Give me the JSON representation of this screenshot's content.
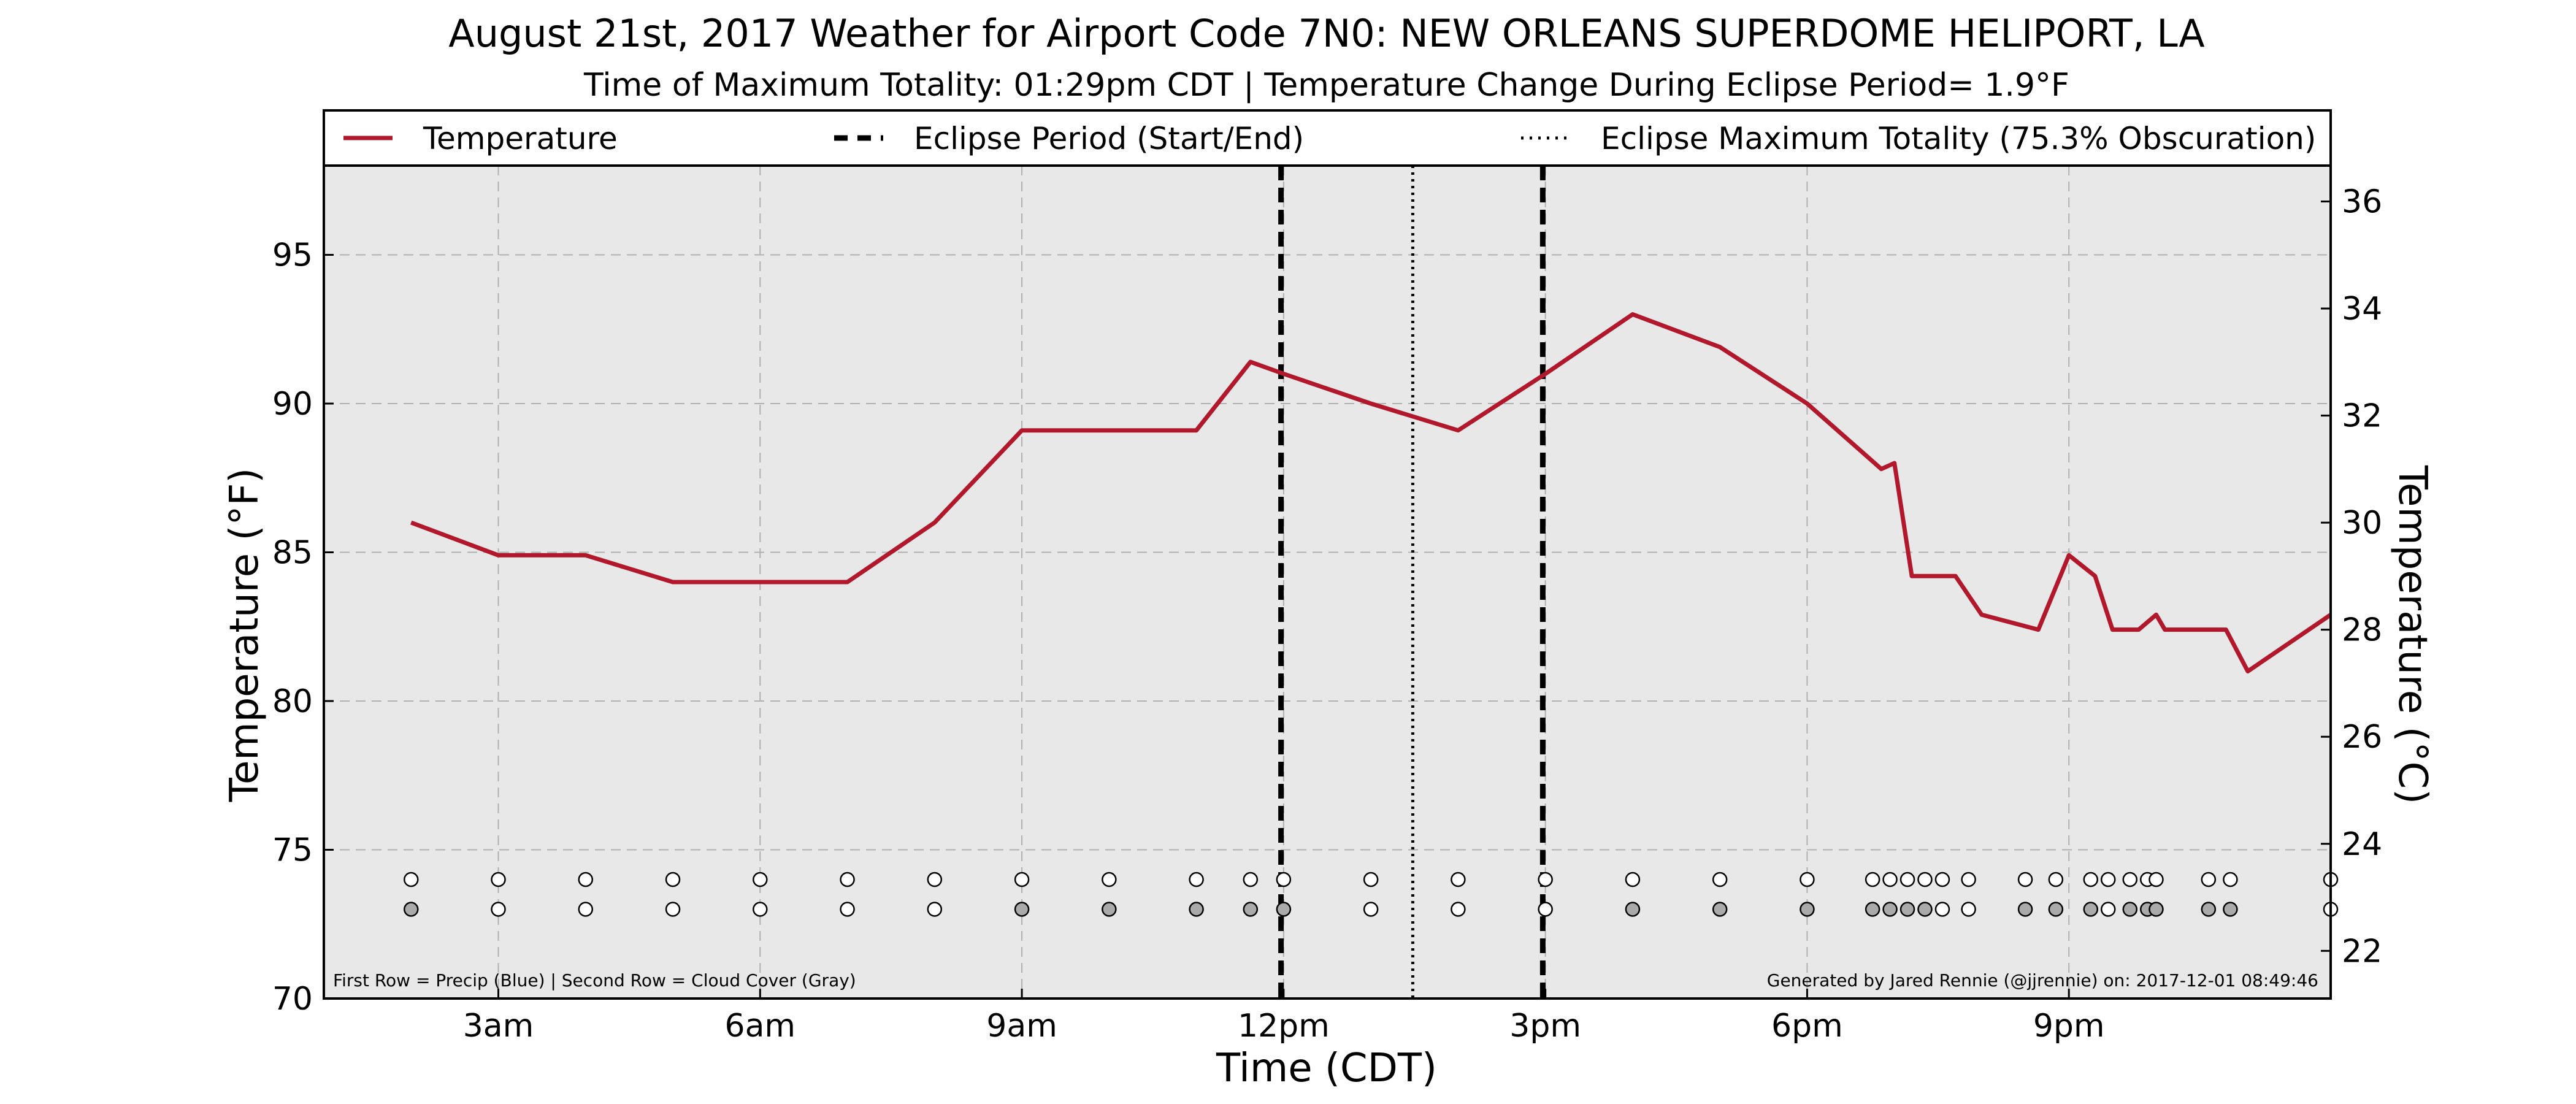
{
  "chart_data": {
    "type": "line",
    "title": "August 21st, 2017 Weather for Airport Code 7N0: NEW ORLEANS SUPERDOME HELIPORT, LA",
    "subtitle": "Time of Maximum Totality: 01:29pm CDT | Temperature Change During Eclipse Period= 1.9°F",
    "xlabel": "Time (CDT)",
    "ylabel_left": "Temperature (°F)",
    "ylabel_right": "Temperature (°C)",
    "x_unit": "hours CDT, Aug 21 2017",
    "xlim": [
      1.0,
      24.0
    ],
    "ylim": [
      70,
      98
    ],
    "ylim_right_celsius": [
      21.11,
      36.67
    ],
    "x_ticks": [
      {
        "value": 3,
        "label": "3am"
      },
      {
        "value": 6,
        "label": "6am"
      },
      {
        "value": 9,
        "label": "9am"
      },
      {
        "value": 12,
        "label": "12pm"
      },
      {
        "value": 15,
        "label": "3pm"
      },
      {
        "value": 18,
        "label": "6pm"
      },
      {
        "value": 21,
        "label": "9pm"
      }
    ],
    "y_ticks_left": [
      70,
      75,
      80,
      85,
      90,
      95
    ],
    "y_ticks_right": [
      22,
      24,
      26,
      28,
      30,
      32,
      34,
      36
    ],
    "grid": true,
    "legend_placement": "top",
    "legend": [
      {
        "label": "Temperature",
        "style": "solid",
        "color": "#b2182b"
      },
      {
        "label": "Eclipse Period (Start/End)",
        "style": "dashed",
        "color": "#000000"
      },
      {
        "label": "Eclipse Maximum Totality (75.3% Obscuration)",
        "style": "dotted",
        "color": "#000000"
      }
    ],
    "series": [
      {
        "name": "Temperature",
        "color": "#b2182b",
        "points": [
          [
            2.0,
            86.0
          ],
          [
            3.0,
            84.9
          ],
          [
            3.5,
            84.9
          ],
          [
            4.0,
            84.9
          ],
          [
            5.0,
            84.0
          ],
          [
            6.0,
            84.0
          ],
          [
            7.0,
            84.0
          ],
          [
            8.0,
            86.0
          ],
          [
            9.0,
            89.1
          ],
          [
            10.0,
            89.1
          ],
          [
            11.0,
            89.1
          ],
          [
            11.62,
            91.4
          ],
          [
            12.0,
            91.0
          ],
          [
            13.0,
            90.0
          ],
          [
            14.0,
            89.1
          ],
          [
            15.0,
            91.0
          ],
          [
            16.0,
            93.0
          ],
          [
            17.0,
            91.9
          ],
          [
            18.0,
            90.0
          ],
          [
            18.85,
            87.8
          ],
          [
            19.0,
            88.0
          ],
          [
            19.2,
            84.2
          ],
          [
            19.7,
            84.2
          ],
          [
            20.0,
            82.9
          ],
          [
            20.65,
            82.4
          ],
          [
            21.0,
            84.9
          ],
          [
            21.3,
            84.2
          ],
          [
            21.5,
            82.4
          ],
          [
            21.8,
            82.4
          ],
          [
            22.0,
            82.9
          ],
          [
            22.1,
            82.4
          ],
          [
            22.8,
            82.4
          ],
          [
            23.05,
            81.0
          ],
          [
            24.0,
            82.9
          ]
        ]
      }
    ],
    "eclipse_start": 11.97,
    "eclipse_end": 14.97,
    "eclipse_max": 13.48,
    "obs_marker_y": [
      74.0,
      73.0
    ],
    "observation_times": [
      2.0,
      3.0,
      4.0,
      5.0,
      6.0,
      7.0,
      8.0,
      9.0,
      10.0,
      11.0,
      11.62,
      12.0,
      13.0,
      14.0,
      15.0,
      16.0,
      17.0,
      18.0,
      18.75,
      18.95,
      19.15,
      19.35,
      19.55,
      19.85,
      20.5,
      20.85,
      21.25,
      21.45,
      21.7,
      21.9,
      22.0,
      22.6,
      22.85,
      24.0
    ],
    "precip_fill": "#ffffff",
    "cloud_cover_fills": [
      "#aaaaaa",
      "#ffffff",
      "#ffffff",
      "#ffffff",
      "#ffffff",
      "#ffffff",
      "#ffffff",
      "#aaaaaa",
      "#aaaaaa",
      "#aaaaaa",
      "#aaaaaa",
      "#aaaaaa",
      "#ffffff",
      "#ffffff",
      "#ffffff",
      "#aaaaaa",
      "#aaaaaa",
      "#aaaaaa",
      "#aaaaaa",
      "#aaaaaa",
      "#aaaaaa",
      "#aaaaaa",
      "#ffffff",
      "#ffffff",
      "#aaaaaa",
      "#aaaaaa",
      "#aaaaaa",
      "#ffffff",
      "#aaaaaa",
      "#aaaaaa",
      "#aaaaaa",
      "#aaaaaa",
      "#aaaaaa",
      "#ffffff"
    ],
    "footnote_left": "First Row = Precip (Blue) | Second Row = Cloud Cover (Gray)",
    "footnote_right": "Generated by Jared Rennie (@jjrennie) on: 2017-12-01 08:49:46",
    "colors": {
      "plot_background": "#e8e8e8",
      "grid": "#b0b0b0",
      "temperature_line": "#b2182b",
      "eclipse_lines": "#000000"
    }
  }
}
